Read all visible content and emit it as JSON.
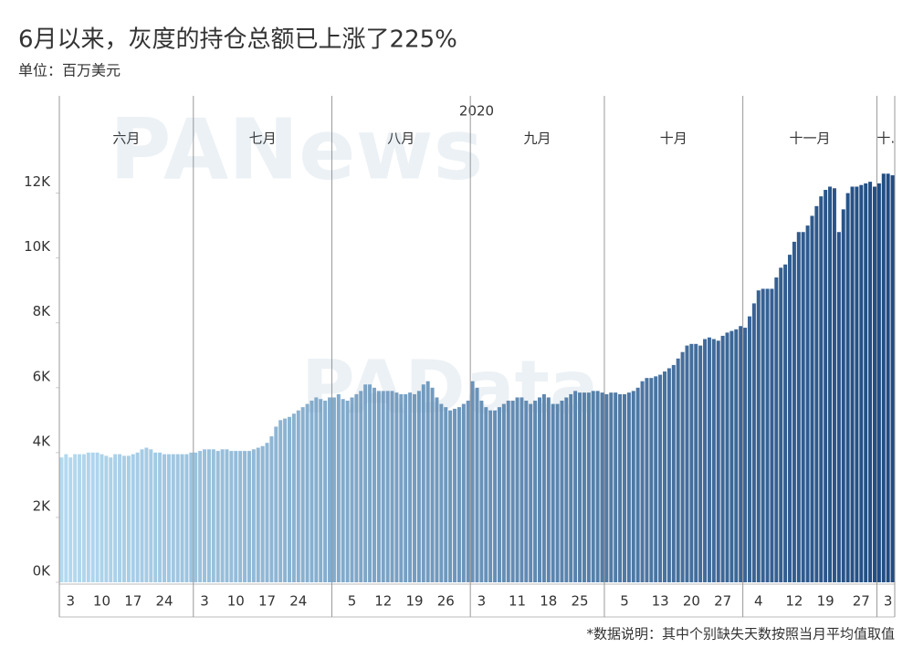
{
  "chart_data": {
    "type": "bar",
    "title": "6月以来，灰度的持仓总额已上涨了225%",
    "subtitle": "单位：百万美元",
    "year": "2020",
    "footnote": "*数据说明：其中个别缺失天数按照当月平均值取值",
    "watermarks": [
      "PANews",
      "PAData"
    ],
    "months": [
      {
        "name": "六月",
        "days": 30
      },
      {
        "name": "七月",
        "days": 31
      },
      {
        "name": "八月",
        "days": 31
      },
      {
        "name": "九月",
        "days": 30
      },
      {
        "name": "十月",
        "days": 31
      },
      {
        "name": "十一月",
        "days": 30
      },
      {
        "name": "十.",
        "days": 4
      }
    ],
    "categories": [
      null,
      null,
      "3",
      null,
      null,
      null,
      null,
      null,
      null,
      "10",
      null,
      null,
      null,
      null,
      null,
      null,
      "17",
      null,
      null,
      null,
      null,
      null,
      null,
      "24",
      null,
      null,
      null,
      null,
      null,
      null,
      null,
      null,
      "3",
      null,
      null,
      null,
      null,
      null,
      null,
      "10",
      null,
      null,
      null,
      null,
      null,
      null,
      "17",
      null,
      null,
      null,
      null,
      null,
      null,
      "24",
      null,
      null,
      null,
      null,
      null,
      null,
      null,
      null,
      null,
      null,
      null,
      "5",
      null,
      null,
      null,
      null,
      null,
      null,
      "12",
      null,
      null,
      null,
      null,
      null,
      null,
      "19",
      null,
      null,
      null,
      null,
      null,
      null,
      "26",
      null,
      null,
      null,
      null,
      null,
      null,
      null,
      "3",
      null,
      null,
      null,
      null,
      null,
      null,
      null,
      "11",
      null,
      null,
      null,
      null,
      null,
      null,
      "18",
      null,
      null,
      null,
      null,
      null,
      null,
      "25",
      null,
      null,
      null,
      null,
      null,
      null,
      null,
      null,
      null,
      "5",
      null,
      null,
      null,
      null,
      null,
      null,
      null,
      "13",
      null,
      null,
      null,
      null,
      null,
      null,
      "20",
      null,
      null,
      null,
      null,
      null,
      null,
      "27",
      null,
      null,
      null,
      null,
      null,
      null,
      null,
      "4",
      null,
      null,
      null,
      null,
      null,
      null,
      null,
      "12",
      null,
      null,
      null,
      null,
      null,
      null,
      "19",
      null,
      null,
      null,
      null,
      null,
      null,
      null,
      "27",
      null,
      null,
      null,
      null,
      null,
      "3",
      null
    ],
    "values": [
      3850,
      3950,
      3850,
      3950,
      3950,
      3950,
      4000,
      4000,
      4000,
      3950,
      3900,
      3850,
      3950,
      3950,
      3900,
      3900,
      3950,
      4000,
      4100,
      4150,
      4100,
      4000,
      4000,
      3950,
      3950,
      3950,
      3950,
      3950,
      3950,
      4000,
      4000,
      4050,
      4100,
      4100,
      4100,
      4050,
      4100,
      4100,
      4050,
      4050,
      4050,
      4050,
      4050,
      4100,
      4150,
      4200,
      4300,
      4500,
      4800,
      5000,
      5050,
      5100,
      5200,
      5300,
      5400,
      5500,
      5600,
      5700,
      5650,
      5600,
      5700,
      5700,
      5800,
      5650,
      5600,
      5700,
      5800,
      5900,
      6100,
      6100,
      6000,
      5900,
      5900,
      5900,
      5900,
      5850,
      5800,
      5800,
      5850,
      5800,
      5900,
      6100,
      6200,
      6000,
      5700,
      5500,
      5400,
      5300,
      5350,
      5400,
      5500,
      5600,
      6200,
      6000,
      5600,
      5400,
      5300,
      5300,
      5400,
      5500,
      5600,
      5600,
      5700,
      5700,
      5600,
      5500,
      5600,
      5700,
      5800,
      5700,
      5500,
      5500,
      5600,
      5700,
      5800,
      5900,
      5850,
      5850,
      5850,
      5900,
      5900,
      5850,
      5800,
      5850,
      5850,
      5800,
      5800,
      5850,
      5900,
      6000,
      6200,
      6300,
      6300,
      6350,
      6400,
      6500,
      6600,
      6700,
      6900,
      7100,
      7300,
      7350,
      7350,
      7300,
      7500,
      7550,
      7500,
      7450,
      7600,
      7700,
      7750,
      7800,
      7900,
      7850,
      8200,
      8600,
      9000,
      9050,
      9050,
      9050,
      9400,
      9700,
      9800,
      10100,
      10500,
      10800,
      10800,
      11000,
      11300,
      11600,
      11900,
      12100,
      12200,
      12150,
      10800,
      11500,
      12000,
      12200,
      12200,
      12250,
      12300,
      12350,
      12200,
      12300,
      12600,
      12600,
      12550
    ],
    "color_range": [
      "#b4daf0",
      "#1f4b82"
    ],
    "ylim": [
      0,
      15000
    ],
    "yticks": [
      {
        "value": 0,
        "label": "0K"
      },
      {
        "value": 2000,
        "label": "2K"
      },
      {
        "value": 4000,
        "label": "4K"
      },
      {
        "value": 6000,
        "label": "6K"
      },
      {
        "value": 8000,
        "label": "8K"
      },
      {
        "value": 10000,
        "label": "10K"
      },
      {
        "value": 12000,
        "label": "12K"
      }
    ]
  }
}
